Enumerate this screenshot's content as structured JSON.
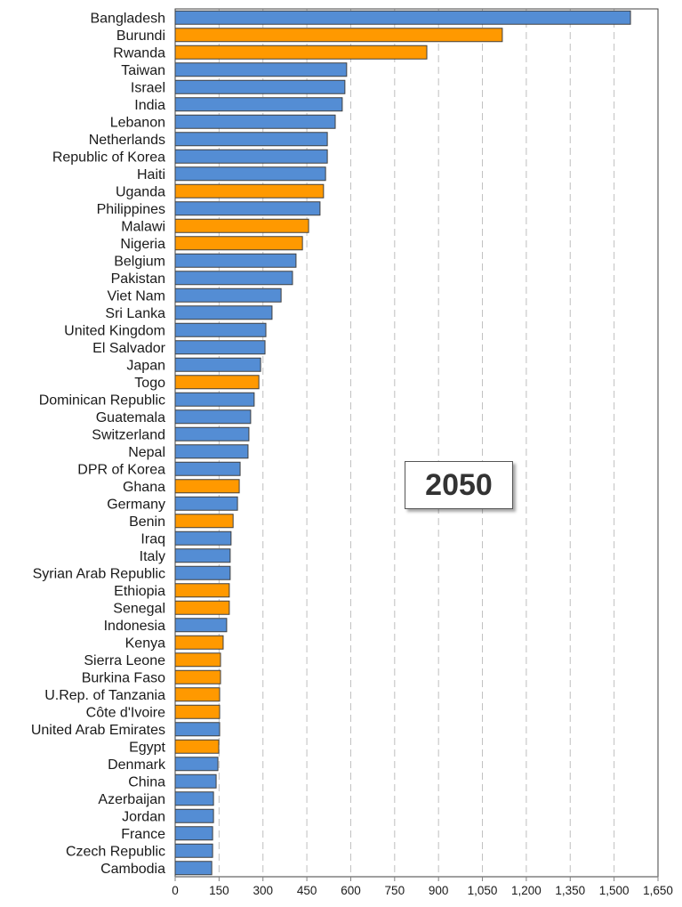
{
  "chart_data": {
    "type": "bar",
    "orientation": "horizontal",
    "annotation": "2050",
    "categories": [
      "Bangladesh",
      "Burundi",
      "Rwanda",
      "Taiwan",
      "Israel",
      "India",
      "Lebanon",
      "Netherlands",
      "Republic of Korea",
      "Haiti",
      "Uganda",
      "Philippines",
      "Malawi",
      "Nigeria",
      "Belgium",
      "Pakistan",
      "Viet Nam",
      "Sri Lanka",
      "United Kingdom",
      "El Salvador",
      "Japan",
      "Togo",
      "Dominican Republic",
      "Guatemala",
      "Switzerland",
      "Nepal",
      "DPR of Korea",
      "Ghana",
      "Germany",
      "Benin",
      "Iraq",
      "Italy",
      "Syrian Arab Republic",
      "Ethiopia",
      "Senegal",
      "Indonesia",
      "Kenya",
      "Sierra Leone",
      "Burkina Faso",
      "U.Rep. of Tanzania",
      "Côte d'Ivoire",
      "United Arab Emirates",
      "Egypt",
      "Denmark",
      "China",
      "Azerbaijan",
      "Jordan",
      "France",
      "Czech Republic",
      "Cambodia"
    ],
    "values": [
      1556,
      1118,
      860,
      586,
      580,
      571,
      547,
      520,
      520,
      514,
      507,
      495,
      456,
      435,
      413,
      401,
      362,
      331,
      310,
      307,
      292,
      286,
      270,
      258,
      252,
      249,
      222,
      219,
      213,
      198,
      191,
      188,
      188,
      185,
      185,
      176,
      164,
      155,
      155,
      152,
      152,
      152,
      149,
      146,
      140,
      131,
      131,
      128,
      128,
      125
    ],
    "group": [
      "b",
      "o",
      "o",
      "b",
      "b",
      "b",
      "b",
      "b",
      "b",
      "b",
      "o",
      "b",
      "o",
      "o",
      "b",
      "b",
      "b",
      "b",
      "b",
      "b",
      "b",
      "o",
      "b",
      "b",
      "b",
      "b",
      "b",
      "o",
      "b",
      "o",
      "b",
      "b",
      "b",
      "o",
      "o",
      "b",
      "o",
      "o",
      "o",
      "o",
      "o",
      "b",
      "o",
      "b",
      "b",
      "b",
      "b",
      "b",
      "b",
      "b"
    ],
    "colors": {
      "b": "#548dd4",
      "o": "#ff9900",
      "outline": "#404040",
      "grid": "#bfbfbf"
    },
    "xlim": [
      0,
      1650
    ],
    "xticks": [
      0,
      150,
      300,
      450,
      600,
      750,
      900,
      1050,
      1200,
      1350,
      1500,
      1650
    ],
    "xtick_labels": [
      "0",
      "150",
      "300",
      "450",
      "600",
      "750",
      "900",
      "1,050",
      "1,200",
      "1,350",
      "1,500",
      "1,650"
    ],
    "grid": "vertical dashed",
    "xlabel": "",
    "ylabel": ""
  }
}
